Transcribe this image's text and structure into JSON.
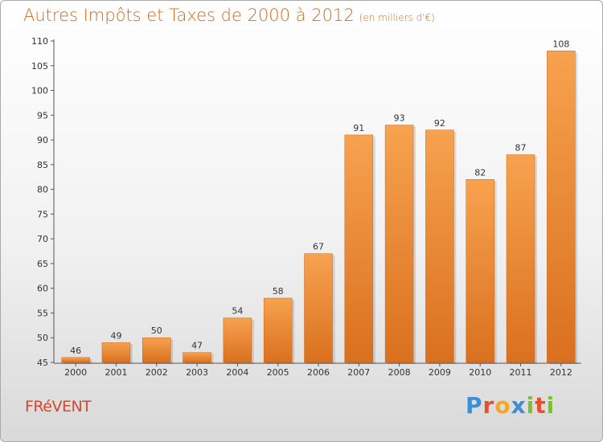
{
  "header": {
    "title": "Autres Impôts et Taxes de 2000 à 2012",
    "subtitle": "(en milliers d'€)"
  },
  "footer": {
    "commune": "FRéVENT",
    "brand": "Proxiti",
    "brand_letters": [
      {
        "ch": "P",
        "color": "#3a8fd6"
      },
      {
        "ch": "r",
        "color": "#e8502a"
      },
      {
        "ch": "o",
        "color": "#f5a623"
      },
      {
        "ch": "x",
        "color": "#3a8fd6"
      },
      {
        "ch": "i",
        "color": "#7cbf2f"
      },
      {
        "ch": "t",
        "color": "#e8502a"
      },
      {
        "ch": "i",
        "color": "#7cbf2f"
      }
    ]
  },
  "colors": {
    "title": "#d2691e",
    "commune": "#d9462c",
    "bar_light": "#f7a24f",
    "bar_dark": "#d9701f"
  },
  "chart_data": {
    "type": "bar",
    "title": "Autres Impôts et Taxes de 2000 à 2012",
    "subtitle": "(en milliers d'€)",
    "xlabel": "",
    "ylabel": "",
    "categories": [
      "2000",
      "2001",
      "2002",
      "2003",
      "2004",
      "2005",
      "2006",
      "2007",
      "2008",
      "2009",
      "2010",
      "2011",
      "2012"
    ],
    "values": [
      46,
      49,
      50,
      47,
      54,
      58,
      67,
      91,
      93,
      92,
      82,
      87,
      108
    ],
    "ylim": [
      45,
      110
    ],
    "yticks": [
      45,
      50,
      55,
      60,
      65,
      70,
      75,
      80,
      85,
      90,
      95,
      100,
      105,
      110
    ],
    "grid": false,
    "legend": "none"
  }
}
